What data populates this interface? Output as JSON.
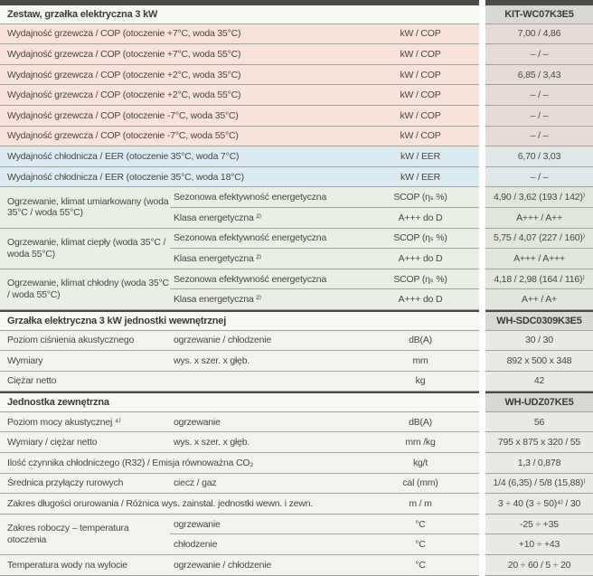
{
  "colors": {
    "dark_bar": "#4b4b47",
    "grid_line": "#a3a39e",
    "text": "#47473f",
    "heating_row_bg": "#f8e3da",
    "heating_value_bg": "#e7dcd5",
    "cooling_row_bg": "#dcebf2",
    "cooling_value_bg": "#dfe8e9",
    "seasonal_row_bg": "#e9efe3",
    "seasonal_value_bg": "#e0e6da",
    "plain_row_bg": "#f2f2ef",
    "plain_value_bg": "#e9e9e6",
    "model_cell_bg": "#d8d8d5",
    "section_header_bg": "#f7f7f4"
  },
  "kit_header": {
    "title": "Zestaw, grzałka elektryczna 3 kW",
    "model": "KIT-WC07K3E5"
  },
  "capacity_rows": [
    {
      "label": "Wydajność grzewcza / COP (otoczenie +7°C, woda 35°C)",
      "unit": "kW / COP",
      "value": "7,00 / 4,86"
    },
    {
      "label": "Wydajność grzewcza / COP (otoczenie +7°C, woda 55°C)",
      "unit": "kW / COP",
      "value": "– / –"
    },
    {
      "label": "Wydajność grzewcza / COP (otoczenie +2°C, woda 35°C)",
      "unit": "kW / COP",
      "value": "6,85 / 3,43"
    },
    {
      "label": "Wydajność grzewcza / COP (otoczenie +2°C, woda 55°C)",
      "unit": "kW / COP",
      "value": "– / –"
    },
    {
      "label": "Wydajność grzewcza / COP (otoczenie -7°C, woda 35°C)",
      "unit": "kW / COP",
      "value": "– / –"
    },
    {
      "label": "Wydajność grzewcza / COP (otoczenie -7°C, woda 55°C)",
      "unit": "kW / COP",
      "value": "– / –"
    },
    {
      "label": "Wydajność chłodnicza / EER (otoczenie 35°C, woda 7°C)",
      "unit": "kW / EER",
      "value": "6,70 / 3,03"
    },
    {
      "label": "Wydajność chłodnicza / EER (otoczenie 35°C, woda 18°C)",
      "unit": "kW / EER",
      "value": "– / –"
    }
  ],
  "climate_groups": [
    {
      "label": "Ogrzewanie, klimat umiarkowany (woda 35°C / woda 55°C)",
      "seasonal_label": "Sezonowa efektywność energetyczna",
      "seasonal_unit": "SCOP (ηₛ %)",
      "seasonal_value": "4,90 / 3,62 (193 / 142)⁾",
      "class_label": "Klasa energetyczna ²⁾",
      "class_unit": "A+++ do D",
      "class_value": "A+++ / A++"
    },
    {
      "label": "Ogrzewanie, klimat ciepły (woda 35°C / woda 55°C)",
      "seasonal_label": "Sezonowa efektywność energetyczna",
      "seasonal_unit": "SCOP (ηₛ %)",
      "seasonal_value": "5,75 / 4,07 (227 / 160)⁾",
      "class_label": "Klasa energetyczna ²⁾",
      "class_unit": "A+++ do D",
      "class_value": "A+++ / A+++"
    },
    {
      "label": "Ogrzewanie, klimat chłodny (woda 35°C / woda 55°C)",
      "seasonal_label": "Sezonowa efektywność energetyczna",
      "seasonal_unit": "SCOP (ηₛ %)",
      "seasonal_value": "4,18 / 2,98 (164 / 116)⁾",
      "class_label": "Klasa energetyczna ²⁾",
      "class_unit": "A+++ do D",
      "class_value": "A++ / A+"
    }
  ],
  "indoor_header": {
    "title": "Grzałka elektryczna 3 kW jednostki wewnętrznej",
    "model": "WH-SDC0309K3E5"
  },
  "indoor_rows": [
    {
      "label": "Poziom ciśnienia akustycznego",
      "sub": "ogrzewanie / chłodzenie",
      "unit": "dB(A)",
      "value": "30 / 30"
    },
    {
      "label": "Wymiary",
      "sub": "wys. x szer. x głęb.",
      "unit": "mm",
      "value": "892 x 500 x 348"
    },
    {
      "label": "Ciężar netto",
      "sub": "",
      "unit": "kg",
      "value": "42"
    }
  ],
  "outdoor_header": {
    "title": "Jednostka zewnętrzna",
    "model": "WH-UDZ07KE5"
  },
  "outdoor_rows": [
    {
      "label": "Poziom mocy akustycznej ⁴⁾",
      "sub": "ogrzewanie",
      "unit": "dB(A)",
      "value": "56"
    },
    {
      "label": "Wymiary / ciężar netto",
      "sub": "wys. x szer. x głęb.",
      "unit": "mm /kg",
      "value": "795 x 875 x 320 / 55"
    },
    {
      "label": "Ilość czynnika chłodniczego (R32) / Emisja równoważna CO₂",
      "unit": "kg/t",
      "value": "1,3 / 0,878"
    },
    {
      "label": "Średnica przyłączy rurowych",
      "sub": "ciecz / gaz",
      "unit": "cal (mm)",
      "value": "1/4 (6,35) / 5/8 (15,88)⁾"
    },
    {
      "label": "Zakres długości orurowania / Różnica wys. zainstal. jednostki wewn. i zewn.",
      "unit": "m / m",
      "value": "3 ÷ 40 (3 ÷ 50)⁴⁾ / 30"
    }
  ],
  "operating_group": {
    "label": "Zakres roboczy – temperatura otoczenia",
    "heating_label": "ogrzewanie",
    "heating_unit": "°C",
    "heating_value": "-25 ÷ +35",
    "cooling_label": "chłodzenie",
    "cooling_unit": "°C",
    "cooling_value": "+10 ÷ +43"
  },
  "outlet_row": {
    "label": "Temperatura wody na wylocie",
    "sub": "ogrzewanie / chłodzenie",
    "unit": "°C",
    "value": "20 ÷ 60 / 5 ÷ 20"
  }
}
